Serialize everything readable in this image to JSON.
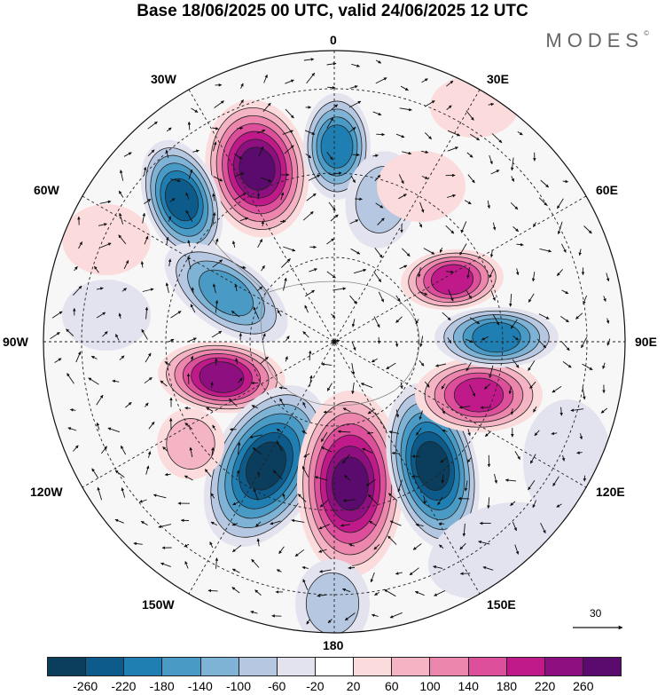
{
  "header": {
    "title": "Base 18/06/2025 00 UTC, valid 24/06/2025 12 UTC",
    "brand": "MODES",
    "brand_mark": "©"
  },
  "map": {
    "projection": "south polar stereographic",
    "longitude_labels": {
      "top": "0",
      "top_right": "30E",
      "right_upper": "60E",
      "right": "90E",
      "right_lower": "120E",
      "bottom_right": "150E",
      "bottom": "180",
      "bottom_left": "150W",
      "left_lower": "120W",
      "left": "90W",
      "left_upper": "60W",
      "top_left": "30W"
    },
    "reference_vector": {
      "value": "30"
    }
  },
  "colorbar": {
    "colors": [
      "#0b3d5c",
      "#0d5b8a",
      "#1f7fb3",
      "#4a9ac6",
      "#7fb3d6",
      "#b5c7e1",
      "#e3e2ef",
      "#ffffff",
      "#fbdbdc",
      "#f4b4c4",
      "#ec86ad",
      "#dd4f9b",
      "#c0198a",
      "#8e0f7f",
      "#5b0a6e"
    ],
    "ticks": [
      "-260",
      "-220",
      "-180",
      "-140",
      "-100",
      "-60",
      "-20",
      "20",
      "60",
      "100",
      "140",
      "180",
      "220",
      "260"
    ]
  }
}
